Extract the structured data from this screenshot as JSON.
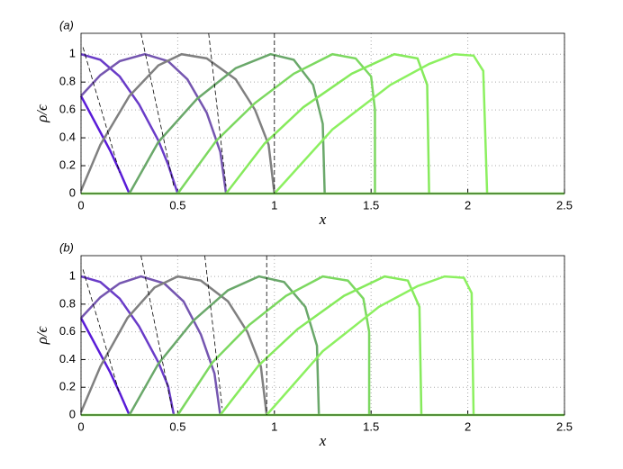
{
  "chart_data": [
    {
      "type": "line",
      "panel_label": "(a)",
      "x_label": "x",
      "y_label": "ρ/ϵ",
      "xlim": [
        0,
        2.5
      ],
      "ylim": [
        0,
        1.15
      ],
      "xticks": [
        0,
        0.5,
        1,
        1.5,
        2,
        2.5
      ],
      "yticks": [
        0,
        0.2,
        0.4,
        0.6,
        0.8,
        1
      ],
      "grid": true,
      "series": [
        {
          "color": "#5a1cd8",
          "x": [
            0,
            0.05,
            0.1,
            0.15,
            0.2,
            0.25
          ],
          "y": [
            0.7,
            0.57,
            0.44,
            0.31,
            0.16,
            0
          ]
        },
        {
          "color": "#6a3cc8",
          "x": [
            0,
            0.1,
            0.2,
            0.3,
            0.4,
            0.45,
            0.5
          ],
          "y": [
            1,
            0.96,
            0.84,
            0.64,
            0.38,
            0.21,
            0
          ]
        },
        {
          "color": "#7556b0",
          "x": [
            0,
            0.1,
            0.2,
            0.33,
            0.45,
            0.55,
            0.65,
            0.72,
            0.75
          ],
          "y": [
            0.7,
            0.85,
            0.95,
            1,
            0.95,
            0.82,
            0.58,
            0.3,
            0
          ]
        },
        {
          "color": "#808080",
          "x": [
            0,
            0.1,
            0.25,
            0.4,
            0.52,
            0.65,
            0.8,
            0.9,
            0.97,
            1
          ],
          "y": [
            0.02,
            0.35,
            0.7,
            0.92,
            1,
            0.97,
            0.82,
            0.6,
            0.35,
            0
          ]
        },
        {
          "color": "#6aa86a",
          "x": [
            0.25,
            0.4,
            0.6,
            0.8,
            0.98,
            1.1,
            1.2,
            1.25,
            1.26
          ],
          "y": [
            0,
            0.37,
            0.68,
            0.9,
            1,
            0.96,
            0.78,
            0.5,
            0
          ]
        },
        {
          "color": "#7cd860",
          "x": [
            0.5,
            0.7,
            0.9,
            1.1,
            1.3,
            1.42,
            1.5,
            1.52,
            1.52
          ],
          "y": [
            0,
            0.38,
            0.65,
            0.86,
            1,
            0.97,
            0.84,
            0.6,
            0
          ]
        },
        {
          "color": "#86ea5c",
          "x": [
            0.75,
            0.95,
            1.15,
            1.4,
            1.62,
            1.74,
            1.79,
            1.8
          ],
          "y": [
            0,
            0.36,
            0.62,
            0.86,
            1,
            0.97,
            0.78,
            0
          ]
        },
        {
          "color": "#8cf060",
          "x": [
            1,
            1.3,
            1.6,
            1.8,
            1.93,
            2.03,
            2.08,
            2.1
          ],
          "y": [
            0,
            0.46,
            0.78,
            0.93,
            1,
            0.99,
            0.88,
            0
          ]
        },
        {
          "color": "#8cf060",
          "x": [
            0,
            2.5
          ],
          "y": [
            0,
            0
          ]
        },
        {
          "color": "#000000",
          "dash": true,
          "x": [
            0.01,
            0.2
          ],
          "y": [
            1.05,
            0.15
          ]
        },
        {
          "color": "#000000",
          "dash": true,
          "x": [
            0.31,
            0.48
          ],
          "y": [
            1.15,
            0.05
          ]
        },
        {
          "color": "#000000",
          "dash": true,
          "x": [
            0.66,
            0.75
          ],
          "y": [
            1.15,
            0.05
          ]
        },
        {
          "color": "#000000",
          "dash": true,
          "x": [
            1,
            1
          ],
          "y": [
            1.15,
            0
          ]
        }
      ]
    },
    {
      "type": "line",
      "panel_label": "(b)",
      "x_label": "x",
      "y_label": "ρ/ϵ",
      "xlim": [
        0,
        2.5
      ],
      "ylim": [
        0,
        1.15
      ],
      "xticks": [
        0,
        0.5,
        1,
        1.5,
        2,
        2.5
      ],
      "yticks": [
        0,
        0.2,
        0.4,
        0.6,
        0.8,
        1
      ],
      "grid": true,
      "series": [
        {
          "color": "#5a1cd8",
          "x": [
            0,
            0.05,
            0.1,
            0.15,
            0.2,
            0.25
          ],
          "y": [
            0.7,
            0.57,
            0.44,
            0.31,
            0.16,
            0
          ]
        },
        {
          "color": "#6a3cc8",
          "x": [
            0,
            0.1,
            0.2,
            0.3,
            0.4,
            0.45,
            0.48
          ],
          "y": [
            1,
            0.96,
            0.84,
            0.64,
            0.38,
            0.21,
            0
          ]
        },
        {
          "color": "#7556b0",
          "x": [
            0,
            0.1,
            0.2,
            0.31,
            0.43,
            0.53,
            0.62,
            0.69,
            0.72
          ],
          "y": [
            0.7,
            0.85,
            0.95,
            1,
            0.95,
            0.82,
            0.58,
            0.3,
            0
          ]
        },
        {
          "color": "#808080",
          "x": [
            0,
            0.1,
            0.24,
            0.38,
            0.5,
            0.62,
            0.76,
            0.86,
            0.93,
            0.96
          ],
          "y": [
            0.02,
            0.35,
            0.7,
            0.92,
            1,
            0.97,
            0.82,
            0.6,
            0.35,
            0
          ]
        },
        {
          "color": "#6aa86a",
          "x": [
            0.25,
            0.4,
            0.58,
            0.76,
            0.92,
            1.05,
            1.16,
            1.22,
            1.23
          ],
          "y": [
            0,
            0.37,
            0.68,
            0.9,
            1,
            0.96,
            0.78,
            0.5,
            0
          ]
        },
        {
          "color": "#7cd860",
          "x": [
            0.5,
            0.68,
            0.87,
            1.06,
            1.25,
            1.38,
            1.46,
            1.49,
            1.49
          ],
          "y": [
            0,
            0.38,
            0.65,
            0.86,
            1,
            0.97,
            0.84,
            0.6,
            0
          ]
        },
        {
          "color": "#86ea5c",
          "x": [
            0.72,
            0.92,
            1.12,
            1.36,
            1.57,
            1.69,
            1.75,
            1.76
          ],
          "y": [
            0,
            0.36,
            0.62,
            0.86,
            1,
            0.97,
            0.78,
            0
          ]
        },
        {
          "color": "#8cf060",
          "x": [
            0.96,
            1.25,
            1.54,
            1.74,
            1.88,
            1.98,
            2.02,
            2.03
          ],
          "y": [
            0,
            0.46,
            0.78,
            0.93,
            1,
            0.99,
            0.88,
            0
          ]
        },
        {
          "color": "#8cf060",
          "x": [
            0,
            2.5
          ],
          "y": [
            0,
            0
          ]
        },
        {
          "color": "#000000",
          "dash": true,
          "x": [
            0.01,
            0.2
          ],
          "y": [
            1.05,
            0.15
          ]
        },
        {
          "color": "#000000",
          "dash": true,
          "x": [
            0.31,
            0.47
          ],
          "y": [
            1.15,
            0.05
          ]
        },
        {
          "color": "#000000",
          "dash": true,
          "x": [
            0.64,
            0.73
          ],
          "y": [
            1.15,
            0.05
          ]
        },
        {
          "color": "#000000",
          "dash": true,
          "x": [
            0.96,
            0.96
          ],
          "y": [
            1.15,
            0
          ]
        }
      ]
    }
  ]
}
